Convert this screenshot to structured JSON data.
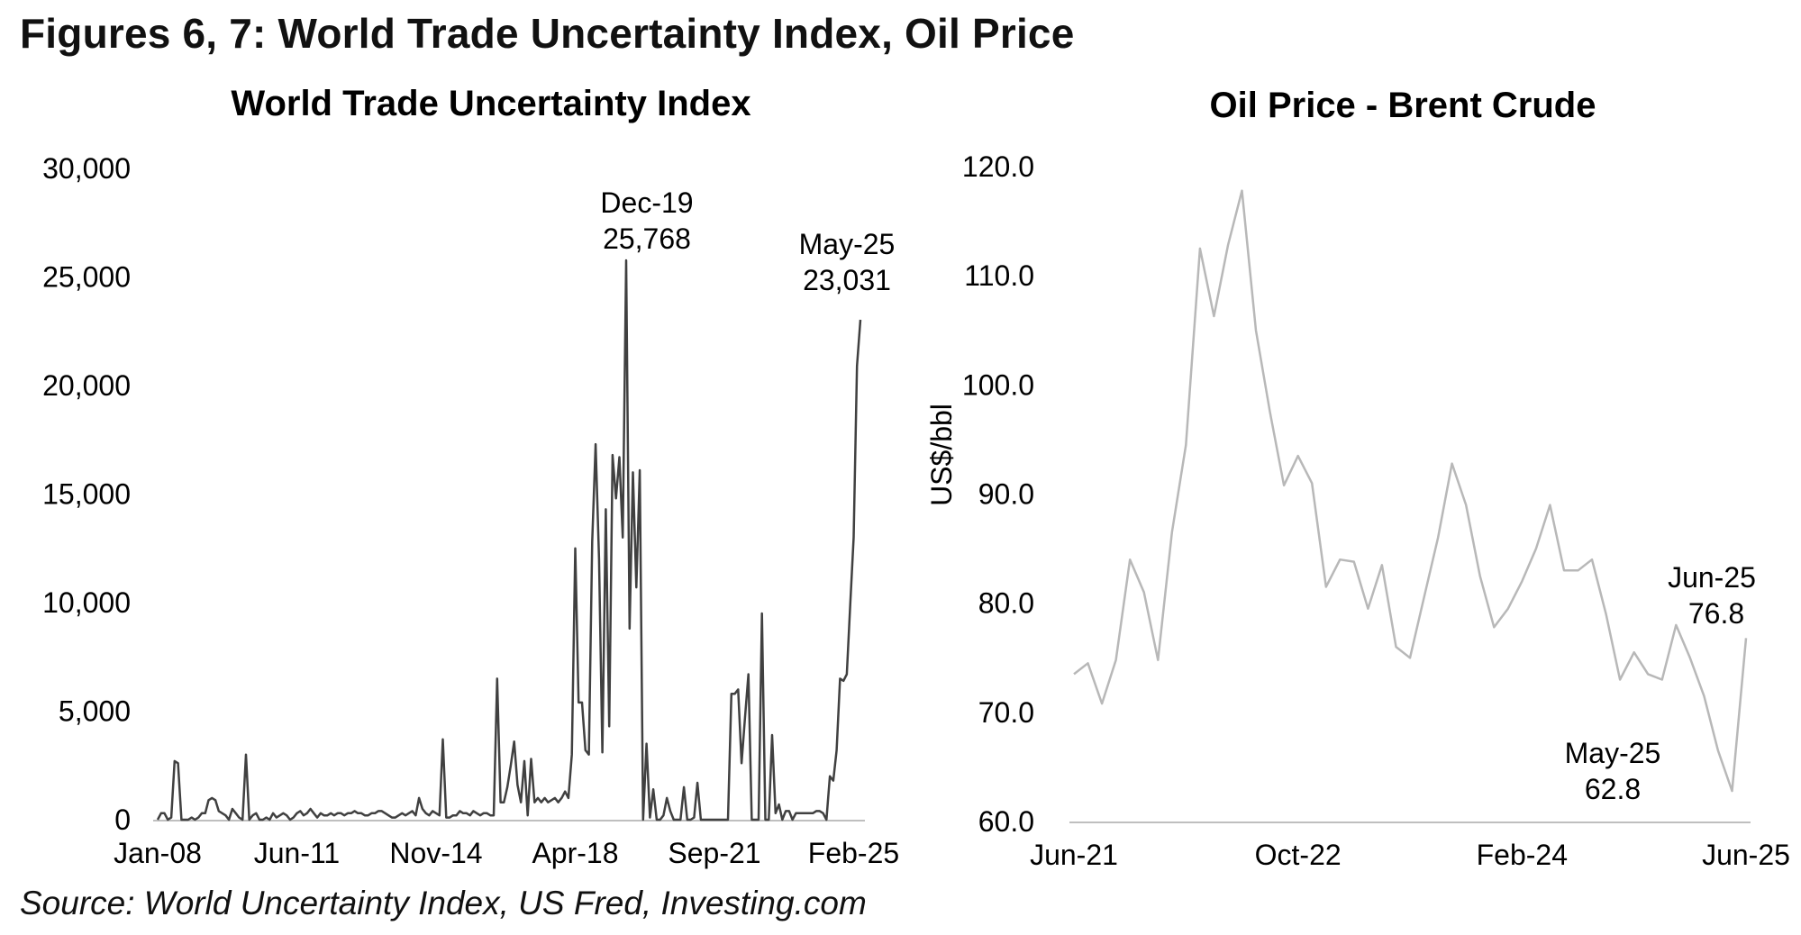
{
  "figure_title": "Figures 6, 7: World Trade Uncertainty Index, Oil Price",
  "source": "Source: World Uncertainty Index, US Fred, Investing.com",
  "chart_data": [
    {
      "type": "line",
      "title": "World Trade Uncertainty Index",
      "xlabel": "",
      "ylabel": "",
      "ylim": [
        0,
        30000
      ],
      "yticks": [
        0,
        5000,
        10000,
        15000,
        20000,
        25000,
        30000
      ],
      "ytick_labels": [
        "0",
        "5,000",
        "10,000",
        "15,000",
        "20,000",
        "25,000",
        "30,000"
      ],
      "xtick_labels": [
        "Jan-08",
        "Jun-11",
        "Nov-14",
        "Apr-18",
        "Sep-21",
        "Feb-25"
      ],
      "xtick_indices": [
        0,
        41,
        82,
        123,
        164,
        205
      ],
      "series": [
        {
          "name": "World Trade Uncertainty Index",
          "color": "#404040",
          "values": [
            0,
            300,
            300,
            0,
            100,
            2700,
            2600,
            0,
            0,
            0,
            100,
            0,
            100,
            300,
            300,
            900,
            1000,
            900,
            400,
            300,
            200,
            0,
            500,
            300,
            100,
            0,
            3000,
            0,
            200,
            300,
            0,
            0,
            100,
            0,
            300,
            100,
            200,
            300,
            200,
            0,
            100,
            300,
            400,
            200,
            300,
            500,
            300,
            100,
            300,
            200,
            200,
            300,
            200,
            300,
            300,
            200,
            300,
            300,
            400,
            300,
            300,
            200,
            200,
            300,
            300,
            400,
            400,
            300,
            200,
            100,
            100,
            200,
            300,
            200,
            300,
            400,
            200,
            1000,
            500,
            300,
            200,
            400,
            300,
            200,
            3700,
            100,
            100,
            200,
            200,
            400,
            300,
            300,
            200,
            400,
            300,
            200,
            300,
            300,
            200,
            200,
            6500,
            800,
            800,
            1500,
            2500,
            3600,
            1600,
            800,
            2700,
            200,
            2800,
            800,
            1000,
            800,
            1000,
            800,
            900,
            1000,
            800,
            1000,
            1300,
            1000,
            3000,
            12500,
            5400,
            5400,
            3200,
            3000,
            12800,
            17300,
            12000,
            3100,
            14300,
            4300,
            16800,
            14800,
            16700,
            13000,
            25768,
            8800,
            16000,
            10700,
            16100,
            0,
            3500,
            100,
            1400,
            0,
            0,
            200,
            1000,
            400,
            0,
            0,
            0,
            1500,
            0,
            0,
            100,
            1700,
            0,
            0,
            0,
            0,
            0,
            0,
            0,
            0,
            0,
            5800,
            5800,
            6000,
            2600,
            4700,
            6700,
            0,
            0,
            0,
            9500,
            0,
            0,
            3900,
            300,
            700,
            0,
            400,
            400,
            0,
            300,
            300,
            300,
            300,
            300,
            300,
            400,
            400,
            300,
            0,
            2000,
            1800,
            3200,
            6500,
            6400,
            6700,
            9900,
            13000,
            20900,
            23031
          ]
        }
      ],
      "annotations": [
        {
          "label": "Dec-19",
          "value": "25,768"
        },
        {
          "label": "May-25",
          "value": "23,031"
        }
      ]
    },
    {
      "type": "line",
      "title": "Oil Price - Brent Crude",
      "xlabel": "",
      "ylabel": "US$/bbl",
      "ylim": [
        60,
        120
      ],
      "yticks": [
        60,
        70,
        80,
        90,
        100,
        110,
        120
      ],
      "ytick_labels": [
        "60.0",
        "70.0",
        "80.0",
        "90.0",
        "100.0",
        "110.0",
        "120.0"
      ],
      "xtick_labels": [
        "Jun-21",
        "Oct-22",
        "Feb-24",
        "Jun-25"
      ],
      "xtick_indices": [
        0,
        16,
        32,
        48
      ],
      "series": [
        {
          "name": "Brent Crude",
          "color": "#b8b8b8",
          "values": [
            73.5,
            74.5,
            70.8,
            74.8,
            84.0,
            81.0,
            74.8,
            86.5,
            94.5,
            112.5,
            106.3,
            112.8,
            117.8,
            105.0,
            97.5,
            90.8,
            93.5,
            91.0,
            81.5,
            84.0,
            83.8,
            79.5,
            83.5,
            76.0,
            75.0,
            80.5,
            86.0,
            92.8,
            89.0,
            82.5,
            77.8,
            79.5,
            82.0,
            85.0,
            89.0,
            83.0,
            83.0,
            84.0,
            79.0,
            73.0,
            75.5,
            73.5,
            73.0,
            78.0,
            75.0,
            71.5,
            66.5,
            62.8,
            76.8
          ]
        }
      ],
      "annotations": [
        {
          "label": "Jun-25",
          "value": "76.8"
        },
        {
          "label": "May-25",
          "value": "62.8"
        }
      ]
    }
  ]
}
